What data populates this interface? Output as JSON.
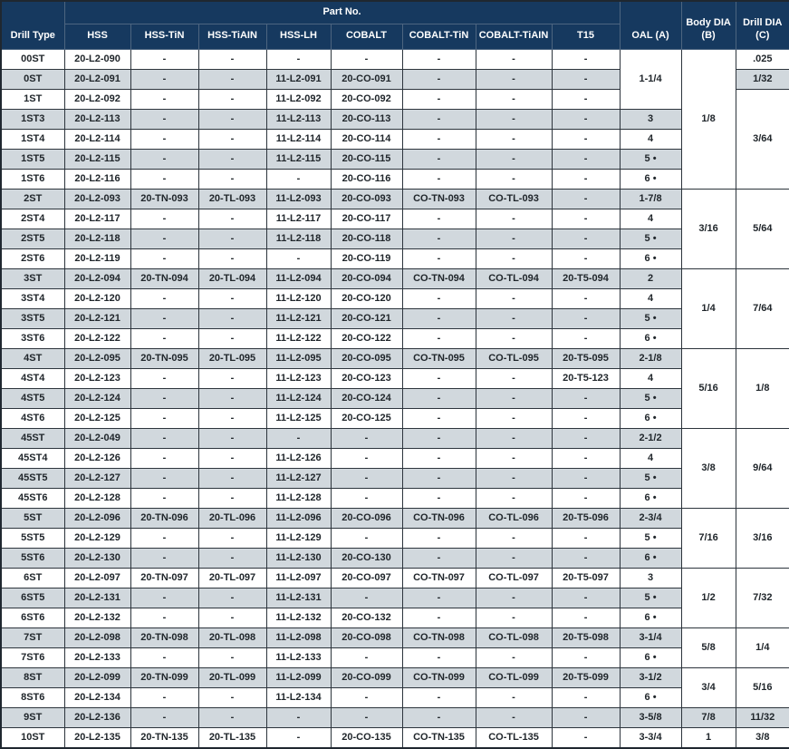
{
  "header": {
    "drill_type": "Drill Type",
    "part_no": "Part No.",
    "materials": [
      "HSS",
      "HSS-TiN",
      "HSS-TiAIN",
      "HSS-LH",
      "COBALT",
      "COBALT-TiN",
      "COBALT-TiAIN",
      "T15"
    ],
    "oal": "OAL (A)",
    "body_dia": {
      "line1": "Body DIA",
      "line2": "(B)"
    },
    "drill_dia": {
      "line1": "Drill DIA",
      "line2": "(C)"
    }
  },
  "colors": {
    "header_bg": "#16395f",
    "header_text": "#ffffff",
    "row_stripe": "#d1d8dd",
    "grid_border": "#2c343c",
    "text": "#20262b"
  },
  "rows": [
    {
      "type": "00ST",
      "parts": [
        "20-L2-090",
        "-",
        "-",
        "-",
        "-",
        "-",
        "-",
        "-"
      ],
      "oal": {
        "t": "1-1/4",
        "s": 3
      },
      "body": {
        "t": "1/8",
        "s": 7
      },
      "drill": {
        "t": ".025",
        "s": 1
      }
    },
    {
      "type": "0ST",
      "parts": [
        "20-L2-091",
        "-",
        "-",
        "11-L2-091",
        "20-CO-091",
        "-",
        "-",
        "-"
      ],
      "oal": null,
      "body": null,
      "drill": {
        "t": "1/32",
        "s": 1
      }
    },
    {
      "type": "1ST",
      "parts": [
        "20-L2-092",
        "-",
        "-",
        "11-L2-092",
        "20-CO-092",
        "-",
        "-",
        "-"
      ],
      "oal": null,
      "body": null,
      "drill": {
        "t": "3/64",
        "s": 5
      }
    },
    {
      "type": "1ST3",
      "parts": [
        "20-L2-113",
        "-",
        "-",
        "11-L2-113",
        "20-CO-113",
        "-",
        "-",
        "-"
      ],
      "oal": {
        "t": "3",
        "s": 1
      },
      "body": null,
      "drill": null
    },
    {
      "type": "1ST4",
      "parts": [
        "20-L2-114",
        "-",
        "-",
        "11-L2-114",
        "20-CO-114",
        "-",
        "-",
        "-"
      ],
      "oal": {
        "t": "4",
        "s": 1
      },
      "body": null,
      "drill": null
    },
    {
      "type": "1ST5",
      "parts": [
        "20-L2-115",
        "-",
        "-",
        "11-L2-115",
        "20-CO-115",
        "-",
        "-",
        "-"
      ],
      "oal": {
        "t": "5 •",
        "s": 1
      },
      "body": null,
      "drill": null
    },
    {
      "type": "1ST6",
      "parts": [
        "20-L2-116",
        "-",
        "-",
        "-",
        "20-CO-116",
        "-",
        "-",
        "-"
      ],
      "oal": {
        "t": "6 •",
        "s": 1
      },
      "body": null,
      "drill": null
    },
    {
      "type": "2ST",
      "parts": [
        "20-L2-093",
        "20-TN-093",
        "20-TL-093",
        "11-L2-093",
        "20-CO-093",
        "CO-TN-093",
        "CO-TL-093",
        "-"
      ],
      "oal": {
        "t": "1-7/8",
        "s": 1
      },
      "body": {
        "t": "3/16",
        "s": 4
      },
      "drill": {
        "t": "5/64",
        "s": 4
      }
    },
    {
      "type": "2ST4",
      "parts": [
        "20-L2-117",
        "-",
        "-",
        "11-L2-117",
        "20-CO-117",
        "-",
        "-",
        "-"
      ],
      "oal": {
        "t": "4",
        "s": 1
      },
      "body": null,
      "drill": null
    },
    {
      "type": "2ST5",
      "parts": [
        "20-L2-118",
        "-",
        "-",
        "11-L2-118",
        "20-CO-118",
        "-",
        "-",
        "-"
      ],
      "oal": {
        "t": "5 •",
        "s": 1
      },
      "body": null,
      "drill": null
    },
    {
      "type": "2ST6",
      "parts": [
        "20-L2-119",
        "-",
        "-",
        "-",
        "20-CO-119",
        "-",
        "-",
        "-"
      ],
      "oal": {
        "t": "6 •",
        "s": 1
      },
      "body": null,
      "drill": null
    },
    {
      "type": "3ST",
      "parts": [
        "20-L2-094",
        "20-TN-094",
        "20-TL-094",
        "11-L2-094",
        "20-CO-094",
        "CO-TN-094",
        "CO-TL-094",
        "20-T5-094"
      ],
      "oal": {
        "t": "2",
        "s": 1
      },
      "body": {
        "t": "1/4",
        "s": 4
      },
      "drill": {
        "t": "7/64",
        "s": 4
      }
    },
    {
      "type": "3ST4",
      "parts": [
        "20-L2-120",
        "-",
        "-",
        "11-L2-120",
        "20-CO-120",
        "-",
        "-",
        "-"
      ],
      "oal": {
        "t": "4",
        "s": 1
      },
      "body": null,
      "drill": null
    },
    {
      "type": "3ST5",
      "parts": [
        "20-L2-121",
        "-",
        "-",
        "11-L2-121",
        "20-CO-121",
        "-",
        "-",
        "-"
      ],
      "oal": {
        "t": "5 •",
        "s": 1
      },
      "body": null,
      "drill": null
    },
    {
      "type": "3ST6",
      "parts": [
        "20-L2-122",
        "-",
        "-",
        "11-L2-122",
        "20-CO-122",
        "-",
        "-",
        "-"
      ],
      "oal": {
        "t": "6 •",
        "s": 1
      },
      "body": null,
      "drill": null
    },
    {
      "type": "4ST",
      "parts": [
        "20-L2-095",
        "20-TN-095",
        "20-TL-095",
        "11-L2-095",
        "20-CO-095",
        "CO-TN-095",
        "CO-TL-095",
        "20-T5-095"
      ],
      "oal": {
        "t": "2-1/8",
        "s": 1
      },
      "body": {
        "t": "5/16",
        "s": 4
      },
      "drill": {
        "t": "1/8",
        "s": 4
      }
    },
    {
      "type": "4ST4",
      "parts": [
        "20-L2-123",
        "-",
        "-",
        "11-L2-123",
        "20-CO-123",
        "-",
        "-",
        "20-T5-123"
      ],
      "oal": {
        "t": "4",
        "s": 1
      },
      "body": null,
      "drill": null
    },
    {
      "type": "4ST5",
      "parts": [
        "20-L2-124",
        "-",
        "-",
        "11-L2-124",
        "20-CO-124",
        "-",
        "-",
        "-"
      ],
      "oal": {
        "t": "5 •",
        "s": 1
      },
      "body": null,
      "drill": null
    },
    {
      "type": "4ST6",
      "parts": [
        "20-L2-125",
        "-",
        "-",
        "11-L2-125",
        "20-CO-125",
        "-",
        "-",
        "-"
      ],
      "oal": {
        "t": "6 •",
        "s": 1
      },
      "body": null,
      "drill": null
    },
    {
      "type": "45ST",
      "parts": [
        "20-L2-049",
        "-",
        "-",
        "-",
        "-",
        "-",
        "-",
        "-"
      ],
      "oal": {
        "t": "2-1/2",
        "s": 1
      },
      "body": {
        "t": "3/8",
        "s": 4
      },
      "drill": {
        "t": "9/64",
        "s": 4
      }
    },
    {
      "type": "45ST4",
      "parts": [
        "20-L2-126",
        "-",
        "-",
        "11-L2-126",
        "-",
        "-",
        "-",
        "-"
      ],
      "oal": {
        "t": "4",
        "s": 1
      },
      "body": null,
      "drill": null
    },
    {
      "type": "45ST5",
      "parts": [
        "20-L2-127",
        "-",
        "-",
        "11-L2-127",
        "-",
        "-",
        "-",
        "-"
      ],
      "oal": {
        "t": "5 •",
        "s": 1
      },
      "body": null,
      "drill": null
    },
    {
      "type": "45ST6",
      "parts": [
        "20-L2-128",
        "-",
        "-",
        "11-L2-128",
        "-",
        "-",
        "-",
        "-"
      ],
      "oal": {
        "t": "6 •",
        "s": 1
      },
      "body": null,
      "drill": null
    },
    {
      "type": "5ST",
      "parts": [
        "20-L2-096",
        "20-TN-096",
        "20-TL-096",
        "11-L2-096",
        "20-CO-096",
        "CO-TN-096",
        "CO-TL-096",
        "20-T5-096"
      ],
      "oal": {
        "t": "2-3/4",
        "s": 1
      },
      "body": {
        "t": "7/16",
        "s": 3
      },
      "drill": {
        "t": "3/16",
        "s": 3
      }
    },
    {
      "type": "5ST5",
      "parts": [
        "20-L2-129",
        "-",
        "-",
        "11-L2-129",
        "-",
        "-",
        "-",
        "-"
      ],
      "oal": {
        "t": "5 •",
        "s": 1
      },
      "body": null,
      "drill": null
    },
    {
      "type": "5ST6",
      "parts": [
        "20-L2-130",
        "-",
        "-",
        "11-L2-130",
        "20-CO-130",
        "-",
        "-",
        "-"
      ],
      "oal": {
        "t": "6 •",
        "s": 1
      },
      "body": null,
      "drill": null
    },
    {
      "type": "6ST",
      "parts": [
        "20-L2-097",
        "20-TN-097",
        "20-TL-097",
        "11-L2-097",
        "20-CO-097",
        "CO-TN-097",
        "CO-TL-097",
        "20-T5-097"
      ],
      "oal": {
        "t": "3",
        "s": 1
      },
      "body": {
        "t": "1/2",
        "s": 3
      },
      "drill": {
        "t": "7/32",
        "s": 3
      }
    },
    {
      "type": "6ST5",
      "parts": [
        "20-L2-131",
        "-",
        "-",
        "11-L2-131",
        "-",
        "-",
        "-",
        "-"
      ],
      "oal": {
        "t": "5 •",
        "s": 1
      },
      "body": null,
      "drill": null
    },
    {
      "type": "6ST6",
      "parts": [
        "20-L2-132",
        "-",
        "-",
        "11-L2-132",
        "20-CO-132",
        "-",
        "-",
        "-"
      ],
      "oal": {
        "t": "6 •",
        "s": 1
      },
      "body": null,
      "drill": null
    },
    {
      "type": "7ST",
      "parts": [
        "20-L2-098",
        "20-TN-098",
        "20-TL-098",
        "11-L2-098",
        "20-CO-098",
        "CO-TN-098",
        "CO-TL-098",
        "20-T5-098"
      ],
      "oal": {
        "t": "3-1/4",
        "s": 1
      },
      "body": {
        "t": "5/8",
        "s": 2
      },
      "drill": {
        "t": "1/4",
        "s": 2
      }
    },
    {
      "type": "7ST6",
      "parts": [
        "20-L2-133",
        "-",
        "-",
        "11-L2-133",
        "-",
        "-",
        "-",
        "-"
      ],
      "oal": {
        "t": "6 •",
        "s": 1
      },
      "body": null,
      "drill": null
    },
    {
      "type": "8ST",
      "parts": [
        "20-L2-099",
        "20-TN-099",
        "20-TL-099",
        "11-L2-099",
        "20-CO-099",
        "CO-TN-099",
        "CO-TL-099",
        "20-T5-099"
      ],
      "oal": {
        "t": "3-1/2",
        "s": 1
      },
      "body": {
        "t": "3/4",
        "s": 2
      },
      "drill": {
        "t": "5/16",
        "s": 2
      }
    },
    {
      "type": "8ST6",
      "parts": [
        "20-L2-134",
        "-",
        "-",
        "11-L2-134",
        "-",
        "-",
        "-",
        "-"
      ],
      "oal": {
        "t": "6 •",
        "s": 1
      },
      "body": null,
      "drill": null
    },
    {
      "type": "9ST",
      "parts": [
        "20-L2-136",
        "-",
        "-",
        "-",
        "-",
        "-",
        "-",
        "-"
      ],
      "oal": {
        "t": "3-5/8",
        "s": 1
      },
      "body": {
        "t": "7/8",
        "s": 1
      },
      "drill": {
        "t": "11/32",
        "s": 1
      }
    },
    {
      "type": "10ST",
      "parts": [
        "20-L2-135",
        "20-TN-135",
        "20-TL-135",
        "-",
        "20-CO-135",
        "CO-TN-135",
        "CO-TL-135",
        "-"
      ],
      "oal": {
        "t": "3-3/4",
        "s": 1
      },
      "body": {
        "t": "1",
        "s": 1
      },
      "drill": {
        "t": "3/8",
        "s": 1
      }
    }
  ]
}
